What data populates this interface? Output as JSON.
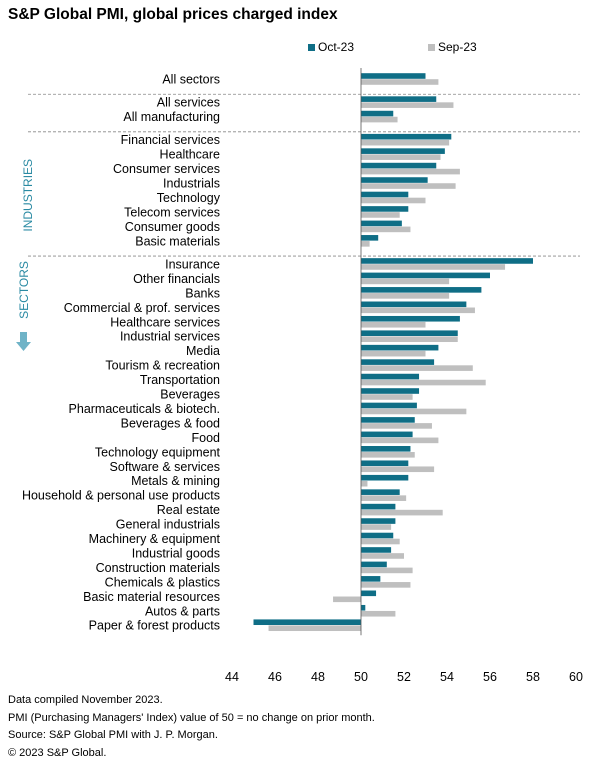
{
  "title": "S&P Global PMI, global prices charged index",
  "legend": [
    {
      "label": "Oct-23",
      "color": "#0f6e86"
    },
    {
      "label": "Sep-23",
      "color": "#bfbfbf"
    }
  ],
  "footnotes": [
    "Data compiled November 2023.",
    "PMI (Purchasing Managers' Index) value of 50 = no change on prior month.",
    "Source: S&P Global PMI with J. P. Morgan.",
    "© 2023 S&P Global."
  ],
  "chart_data": {
    "type": "bar",
    "orientation": "horizontal",
    "title": "S&P Global PMI, global prices charged index",
    "xlim": [
      44,
      60
    ],
    "baseline": 50,
    "xticks": [
      44,
      46,
      48,
      50,
      52,
      54,
      56,
      58,
      60
    ],
    "group_labels": [
      "INDUSTRIES",
      "SECTORS"
    ],
    "series": [
      {
        "name": "Oct-23",
        "color": "#0f6e86"
      },
      {
        "name": "Sep-23",
        "color": "#bfbfbf"
      }
    ],
    "groups": [
      {
        "label": "",
        "rows": [
          {
            "category": "All sectors",
            "values": [
              53.0,
              53.6
            ]
          }
        ]
      },
      {
        "label": "",
        "rows": [
          {
            "category": "All services",
            "values": [
              53.5,
              54.3
            ]
          },
          {
            "category": "All manufacturing",
            "values": [
              51.5,
              51.7
            ]
          }
        ]
      },
      {
        "label": "INDUSTRIES",
        "rows": [
          {
            "category": "Financial services",
            "values": [
              54.2,
              54.1
            ]
          },
          {
            "category": "Healthcare",
            "values": [
              53.9,
              53.7
            ]
          },
          {
            "category": "Consumer services",
            "values": [
              53.5,
              54.6
            ]
          },
          {
            "category": "Industrials",
            "values": [
              53.1,
              54.4
            ]
          },
          {
            "category": "Technology",
            "values": [
              52.2,
              53.0
            ]
          },
          {
            "category": "Telecom services",
            "values": [
              52.2,
              51.8
            ]
          },
          {
            "category": "Consumer goods",
            "values": [
              51.9,
              52.3
            ]
          },
          {
            "category": "Basic materials",
            "values": [
              50.8,
              50.4
            ]
          }
        ]
      },
      {
        "label": "SECTORS",
        "rows": [
          {
            "category": "Insurance",
            "values": [
              58.0,
              56.7
            ]
          },
          {
            "category": "Other financials",
            "values": [
              56.0,
              54.1
            ]
          },
          {
            "category": "Banks",
            "values": [
              55.6,
              54.1
            ]
          },
          {
            "category": "Commercial & prof. services",
            "values": [
              54.9,
              55.3
            ]
          },
          {
            "category": "Healthcare services",
            "values": [
              54.6,
              53.0
            ]
          },
          {
            "category": "Industrial services",
            "values": [
              54.5,
              54.5
            ]
          },
          {
            "category": "Media",
            "values": [
              53.6,
              53.0
            ]
          },
          {
            "category": "Tourism & recreation",
            "values": [
              53.4,
              55.2
            ]
          },
          {
            "category": "Transportation",
            "values": [
              52.7,
              55.8
            ]
          },
          {
            "category": "Beverages",
            "values": [
              52.7,
              52.4
            ]
          },
          {
            "category": "Pharmaceuticals & biotech.",
            "values": [
              52.6,
              54.9
            ]
          },
          {
            "category": "Beverages & food",
            "values": [
              52.5,
              53.3
            ]
          },
          {
            "category": "Food",
            "values": [
              52.4,
              53.6
            ]
          },
          {
            "category": "Technology equipment",
            "values": [
              52.3,
              52.5
            ]
          },
          {
            "category": "Software & services",
            "values": [
              52.2,
              53.4
            ]
          },
          {
            "category": "Metals & mining",
            "values": [
              52.2,
              50.3
            ]
          },
          {
            "category": "Household & personal use products",
            "values": [
              51.8,
              52.1
            ]
          },
          {
            "category": "Real estate",
            "values": [
              51.6,
              53.8
            ]
          },
          {
            "category": "General industrials",
            "values": [
              51.6,
              51.4
            ]
          },
          {
            "category": "Machinery & equipment",
            "values": [
              51.5,
              51.8
            ]
          },
          {
            "category": "Industrial goods",
            "values": [
              51.4,
              52.0
            ]
          },
          {
            "category": "Construction materials",
            "values": [
              51.2,
              52.4
            ]
          },
          {
            "category": "Chemicals & plastics",
            "values": [
              50.9,
              52.3
            ]
          },
          {
            "category": "Basic material resources",
            "values": [
              50.7,
              48.7
            ]
          },
          {
            "category": "Autos & parts",
            "values": [
              50.2,
              51.6
            ]
          },
          {
            "category": "Paper & forest products",
            "values": [
              45.0,
              45.7
            ]
          }
        ]
      }
    ]
  }
}
